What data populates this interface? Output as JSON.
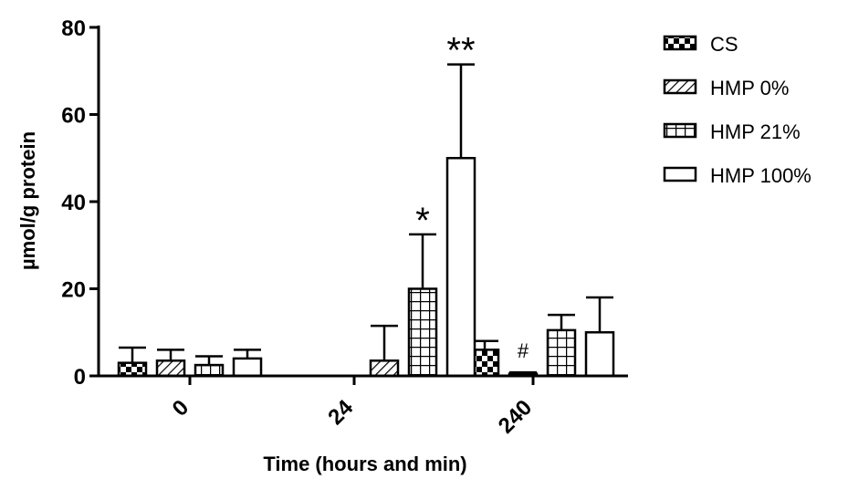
{
  "chart_data": {
    "type": "bar",
    "title": "",
    "xlabel": "Time (hours and min)",
    "ylabel": "µmol/g protein",
    "ylim": [
      0,
      80
    ],
    "yticks": [
      0,
      20,
      40,
      60,
      80
    ],
    "categories": [
      "0",
      "24",
      "240"
    ],
    "legend_position": "top-right",
    "series": [
      {
        "name": "CS",
        "pattern": "checker",
        "values": [
          3,
          null,
          6
        ],
        "errors": [
          3.5,
          null,
          2
        ]
      },
      {
        "name": "HMP 0%",
        "pattern": "diagonal",
        "values": [
          3.5,
          3.5,
          0.5
        ],
        "errors": [
          2.5,
          8,
          0.3
        ]
      },
      {
        "name": "HMP 21%",
        "pattern": "grid",
        "values": [
          2.5,
          20,
          10.5
        ],
        "errors": [
          2,
          12.5,
          3.5
        ]
      },
      {
        "name": "HMP 100%",
        "pattern": "open",
        "values": [
          4,
          50,
          10
        ],
        "errors": [
          2,
          21.5,
          8
        ]
      }
    ],
    "annotations": [
      {
        "text": "**",
        "category": "24",
        "series": "HMP 100%"
      },
      {
        "text": "*",
        "category": "24",
        "series": "HMP 21%"
      },
      {
        "text": "#",
        "category": "240",
        "series": "HMP 0%"
      }
    ]
  }
}
